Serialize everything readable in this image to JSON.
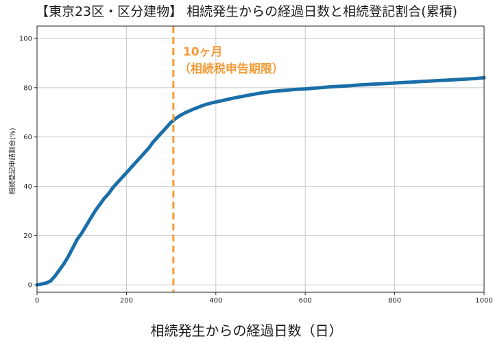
{
  "chart_data": {
    "type": "line",
    "title": "【東京23区・区分建物】 相続発生からの経過日数と相続登記割合(累積)",
    "xlabel": "相続発生からの経過日数（日）",
    "ylabel": "相続登記申請割合(%)",
    "xlim": [
      0,
      1000
    ],
    "ylim": [
      -3,
      105
    ],
    "xticks": [
      0,
      200,
      400,
      600,
      800,
      1000
    ],
    "yticks": [
      0,
      20,
      40,
      60,
      80,
      100
    ],
    "grid": true,
    "series": [
      {
        "color": "#1a6fa8",
        "x": [
          0,
          10,
          20,
          30,
          40,
          50,
          60,
          70,
          80,
          90,
          100,
          110,
          120,
          130,
          140,
          150,
          160,
          170,
          180,
          190,
          200,
          210,
          220,
          230,
          240,
          250,
          260,
          270,
          280,
          290,
          300,
          310,
          320,
          330,
          340,
          350,
          360,
          370,
          380,
          390,
          400,
          420,
          440,
          460,
          480,
          500,
          520,
          540,
          560,
          580,
          600,
          620,
          640,
          660,
          680,
          700,
          720,
          740,
          760,
          780,
          800,
          820,
          840,
          860,
          880,
          900,
          920,
          940,
          960,
          980,
          1000
        ],
        "y": [
          0,
          0.3,
          0.7,
          1.5,
          3.5,
          6.0,
          8.5,
          11.5,
          15.0,
          18.5,
          21.0,
          24.0,
          27.0,
          30.0,
          32.5,
          35.0,
          37.0,
          39.5,
          41.5,
          43.5,
          45.5,
          47.5,
          49.5,
          51.5,
          53.5,
          55.5,
          58.0,
          60.0,
          62.0,
          64.0,
          66.0,
          67.5,
          68.7,
          69.7,
          70.5,
          71.3,
          72.0,
          72.7,
          73.3,
          73.8,
          74.2,
          75.0,
          75.8,
          76.5,
          77.2,
          77.8,
          78.3,
          78.7,
          79.0,
          79.3,
          79.5,
          79.8,
          80.1,
          80.4,
          80.6,
          80.8,
          81.1,
          81.3,
          81.5,
          81.7,
          81.9,
          82.1,
          82.3,
          82.5,
          82.7,
          82.9,
          83.1,
          83.3,
          83.5,
          83.7,
          84.0
        ]
      }
    ],
    "marker": {
      "x": 305,
      "color": "#f39c38",
      "label_line1": "10ヶ月",
      "label_line2": "（相続税申告期限）"
    }
  }
}
